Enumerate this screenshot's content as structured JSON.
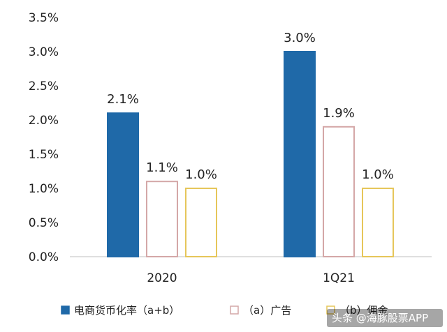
{
  "chart_data": {
    "type": "bar",
    "title": "",
    "xlabel": "",
    "ylabel": "",
    "categories": [
      "2020",
      "1Q21"
    ],
    "ylim": [
      0,
      3.5
    ],
    "yticks": [
      "0.0%",
      "0.5%",
      "1.0%",
      "1.5%",
      "2.0%",
      "2.5%",
      "3.0%",
      "3.5%"
    ],
    "series": [
      {
        "name": "电商货币化率（a+b）",
        "values": [
          2.1,
          3.0
        ],
        "labels": [
          "2.1%",
          "3.0%"
        ],
        "fill": "#1f69a8",
        "stroke": "#1f69a8"
      },
      {
        "name": "（a）广告",
        "values": [
          1.1,
          1.9
        ],
        "labels": [
          "1.1%",
          "1.9%"
        ],
        "fill": "#ffffff",
        "stroke": "#d4a7a7"
      },
      {
        "name": "（b）佣金",
        "values": [
          1.0,
          1.0
        ],
        "labels": [
          "1.0%",
          "1.0%"
        ],
        "fill": "#ffffff",
        "stroke": "#e6c65a"
      }
    ],
    "legend": "bottom",
    "grid": false
  },
  "watermark": "头条 @海豚股票APP"
}
